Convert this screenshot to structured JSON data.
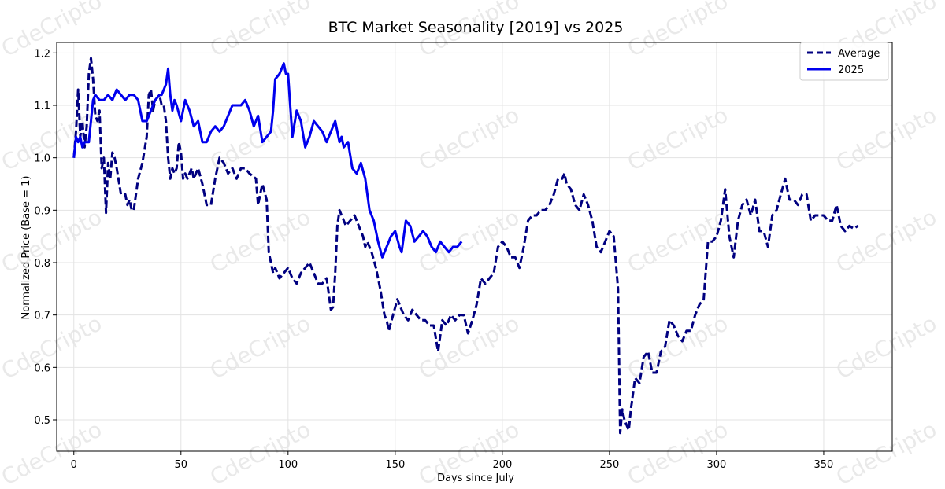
{
  "chart_data": {
    "type": "line",
    "title": "BTC Market Seasonality [2019] vs 2025",
    "xlabel": "Days since July",
    "ylabel": "Normalized Price (Base = 1)",
    "xlim": [
      -8,
      382
    ],
    "ylim": [
      0.44,
      1.22
    ],
    "xticks": [
      0,
      50,
      100,
      150,
      200,
      250,
      300,
      350
    ],
    "yticks": [
      0.5,
      0.6,
      0.7,
      0.8,
      0.9,
      1.0,
      1.1,
      1.2
    ],
    "ytick_labels": [
      "0.5",
      "0.6",
      "0.7",
      "0.8",
      "0.9",
      "1.0",
      "1.1",
      "1.2"
    ],
    "grid": true,
    "legend_position": "top-right",
    "watermark": "CdeCripto",
    "series": [
      {
        "name": "Average",
        "style": "dashed",
        "color": "#000080",
        "points": [
          [
            0,
            1.0
          ],
          [
            1,
            1.05
          ],
          [
            2,
            1.13
          ],
          [
            3,
            1.04
          ],
          [
            4,
            1.07
          ],
          [
            5,
            1.02
          ],
          [
            6,
            1.06
          ],
          [
            7,
            1.16
          ],
          [
            8,
            1.19
          ],
          [
            9,
            1.15
          ],
          [
            10,
            1.08
          ],
          [
            11,
            1.07
          ],
          [
            12,
            1.09
          ],
          [
            13,
            0.98
          ],
          [
            14,
            1.0
          ],
          [
            15,
            0.895
          ],
          [
            16,
            0.99
          ],
          [
            17,
            0.96
          ],
          [
            18,
            1.01
          ],
          [
            19,
            1.0
          ],
          [
            20,
            0.98
          ],
          [
            22,
            0.93
          ],
          [
            24,
            0.93
          ],
          [
            25,
            0.91
          ],
          [
            26,
            0.92
          ],
          [
            27,
            0.9
          ],
          [
            28,
            0.9
          ],
          [
            30,
            0.96
          ],
          [
            32,
            0.99
          ],
          [
            34,
            1.04
          ],
          [
            35,
            1.12
          ],
          [
            36,
            1.13
          ],
          [
            37,
            1.09
          ],
          [
            38,
            1.11
          ],
          [
            40,
            1.12
          ],
          [
            41,
            1.1
          ],
          [
            42,
            1.1
          ],
          [
            43,
            1.07
          ],
          [
            44,
            1.0
          ],
          [
            45,
            0.96
          ],
          [
            46,
            0.98
          ],
          [
            47,
            0.97
          ],
          [
            48,
            0.98
          ],
          [
            49,
            1.03
          ],
          [
            50,
            1.01
          ],
          [
            51,
            0.96
          ],
          [
            52,
            0.97
          ],
          [
            53,
            0.96
          ],
          [
            55,
            0.98
          ],
          [
            56,
            0.96
          ],
          [
            58,
            0.98
          ],
          [
            60,
            0.95
          ],
          [
            62,
            0.91
          ],
          [
            64,
            0.91
          ],
          [
            66,
            0.96
          ],
          [
            68,
            1.0
          ],
          [
            70,
            0.99
          ],
          [
            72,
            0.97
          ],
          [
            74,
            0.98
          ],
          [
            76,
            0.96
          ],
          [
            78,
            0.98
          ],
          [
            80,
            0.98
          ],
          [
            82,
            0.97
          ],
          [
            85,
            0.96
          ],
          [
            86,
            0.91
          ],
          [
            87,
            0.93
          ],
          [
            88,
            0.95
          ],
          [
            90,
            0.92
          ],
          [
            91,
            0.82
          ],
          [
            93,
            0.78
          ],
          [
            94,
            0.79
          ],
          [
            96,
            0.77
          ],
          [
            98,
            0.78
          ],
          [
            100,
            0.79
          ],
          [
            102,
            0.77
          ],
          [
            104,
            0.76
          ],
          [
            106,
            0.78
          ],
          [
            108,
            0.79
          ],
          [
            110,
            0.8
          ],
          [
            112,
            0.78
          ],
          [
            114,
            0.76
          ],
          [
            116,
            0.76
          ],
          [
            118,
            0.77
          ],
          [
            120,
            0.71
          ],
          [
            121,
            0.715
          ],
          [
            122,
            0.78
          ],
          [
            123,
            0.87
          ],
          [
            124,
            0.9
          ],
          [
            125,
            0.89
          ],
          [
            127,
            0.87
          ],
          [
            129,
            0.88
          ],
          [
            131,
            0.89
          ],
          [
            133,
            0.87
          ],
          [
            135,
            0.85
          ],
          [
            136,
            0.83
          ],
          [
            137,
            0.84
          ],
          [
            139,
            0.82
          ],
          [
            141,
            0.79
          ],
          [
            143,
            0.75
          ],
          [
            145,
            0.7
          ],
          [
            146,
            0.69
          ],
          [
            147,
            0.67
          ],
          [
            149,
            0.7
          ],
          [
            151,
            0.73
          ],
          [
            152,
            0.72
          ],
          [
            154,
            0.7
          ],
          [
            156,
            0.69
          ],
          [
            158,
            0.71
          ],
          [
            160,
            0.7
          ],
          [
            162,
            0.69
          ],
          [
            164,
            0.69
          ],
          [
            166,
            0.68
          ],
          [
            168,
            0.68
          ],
          [
            170,
            0.63
          ],
          [
            172,
            0.69
          ],
          [
            174,
            0.68
          ],
          [
            176,
            0.7
          ],
          [
            178,
            0.69
          ],
          [
            180,
            0.7
          ],
          [
            182,
            0.7
          ],
          [
            184,
            0.665
          ],
          [
            186,
            0.69
          ],
          [
            188,
            0.72
          ],
          [
            190,
            0.77
          ],
          [
            192,
            0.76
          ],
          [
            194,
            0.77
          ],
          [
            196,
            0.78
          ],
          [
            198,
            0.83
          ],
          [
            200,
            0.84
          ],
          [
            202,
            0.83
          ],
          [
            204,
            0.81
          ],
          [
            206,
            0.81
          ],
          [
            208,
            0.79
          ],
          [
            210,
            0.83
          ],
          [
            212,
            0.88
          ],
          [
            214,
            0.89
          ],
          [
            216,
            0.89
          ],
          [
            218,
            0.9
          ],
          [
            220,
            0.9
          ],
          [
            222,
            0.91
          ],
          [
            224,
            0.93
          ],
          [
            226,
            0.96
          ],
          [
            228,
            0.96
          ],
          [
            229,
            0.97
          ],
          [
            230,
            0.95
          ],
          [
            232,
            0.94
          ],
          [
            234,
            0.91
          ],
          [
            236,
            0.9
          ],
          [
            238,
            0.93
          ],
          [
            240,
            0.91
          ],
          [
            242,
            0.88
          ],
          [
            244,
            0.83
          ],
          [
            246,
            0.82
          ],
          [
            248,
            0.84
          ],
          [
            250,
            0.86
          ],
          [
            252,
            0.85
          ],
          [
            254,
            0.75
          ],
          [
            255,
            0.475
          ],
          [
            256,
            0.52
          ],
          [
            257,
            0.5
          ],
          [
            258,
            0.49
          ],
          [
            259,
            0.48
          ],
          [
            260,
            0.52
          ],
          [
            262,
            0.58
          ],
          [
            264,
            0.57
          ],
          [
            266,
            0.62
          ],
          [
            268,
            0.63
          ],
          [
            270,
            0.59
          ],
          [
            272,
            0.59
          ],
          [
            274,
            0.63
          ],
          [
            276,
            0.64
          ],
          [
            278,
            0.69
          ],
          [
            280,
            0.68
          ],
          [
            282,
            0.66
          ],
          [
            284,
            0.65
          ],
          [
            286,
            0.67
          ],
          [
            288,
            0.67
          ],
          [
            290,
            0.7
          ],
          [
            292,
            0.72
          ],
          [
            294,
            0.73
          ],
          [
            296,
            0.84
          ],
          [
            298,
            0.84
          ],
          [
            300,
            0.85
          ],
          [
            302,
            0.88
          ],
          [
            304,
            0.94
          ],
          [
            306,
            0.85
          ],
          [
            308,
            0.81
          ],
          [
            310,
            0.88
          ],
          [
            312,
            0.91
          ],
          [
            314,
            0.92
          ],
          [
            316,
            0.89
          ],
          [
            318,
            0.92
          ],
          [
            320,
            0.86
          ],
          [
            322,
            0.86
          ],
          [
            324,
            0.83
          ],
          [
            326,
            0.89
          ],
          [
            328,
            0.9
          ],
          [
            330,
            0.93
          ],
          [
            332,
            0.96
          ],
          [
            334,
            0.92
          ],
          [
            336,
            0.92
          ],
          [
            338,
            0.91
          ],
          [
            340,
            0.93
          ],
          [
            342,
            0.93
          ],
          [
            344,
            0.88
          ],
          [
            346,
            0.89
          ],
          [
            348,
            0.89
          ],
          [
            350,
            0.89
          ],
          [
            352,
            0.88
          ],
          [
            354,
            0.88
          ],
          [
            356,
            0.91
          ],
          [
            358,
            0.87
          ],
          [
            360,
            0.86
          ],
          [
            362,
            0.87
          ],
          [
            364,
            0.865
          ],
          [
            366,
            0.87
          ]
        ]
      },
      {
        "name": "2025",
        "style": "solid",
        "color": "#0000ee",
        "points": [
          [
            0,
            1.0
          ],
          [
            1,
            1.04
          ],
          [
            2,
            1.03
          ],
          [
            3,
            1.04
          ],
          [
            4,
            1.02
          ],
          [
            5,
            1.03
          ],
          [
            7,
            1.03
          ],
          [
            9,
            1.11
          ],
          [
            10,
            1.12
          ],
          [
            12,
            1.11
          ],
          [
            14,
            1.11
          ],
          [
            16,
            1.12
          ],
          [
            18,
            1.11
          ],
          [
            20,
            1.13
          ],
          [
            22,
            1.12
          ],
          [
            24,
            1.11
          ],
          [
            26,
            1.12
          ],
          [
            28,
            1.12
          ],
          [
            30,
            1.11
          ],
          [
            32,
            1.07
          ],
          [
            34,
            1.07
          ],
          [
            36,
            1.09
          ],
          [
            38,
            1.11
          ],
          [
            40,
            1.12
          ],
          [
            41,
            1.12
          ],
          [
            42,
            1.13
          ],
          [
            43,
            1.14
          ],
          [
            44,
            1.17
          ],
          [
            45,
            1.12
          ],
          [
            46,
            1.09
          ],
          [
            47,
            1.11
          ],
          [
            48,
            1.1
          ],
          [
            50,
            1.07
          ],
          [
            52,
            1.11
          ],
          [
            54,
            1.09
          ],
          [
            56,
            1.06
          ],
          [
            58,
            1.07
          ],
          [
            60,
            1.03
          ],
          [
            62,
            1.03
          ],
          [
            64,
            1.05
          ],
          [
            66,
            1.06
          ],
          [
            68,
            1.05
          ],
          [
            70,
            1.06
          ],
          [
            72,
            1.08
          ],
          [
            74,
            1.1
          ],
          [
            76,
            1.1
          ],
          [
            78,
            1.1
          ],
          [
            80,
            1.11
          ],
          [
            82,
            1.09
          ],
          [
            84,
            1.06
          ],
          [
            86,
            1.08
          ],
          [
            88,
            1.03
          ],
          [
            90,
            1.04
          ],
          [
            92,
            1.05
          ],
          [
            93,
            1.09
          ],
          [
            94,
            1.15
          ],
          [
            96,
            1.16
          ],
          [
            98,
            1.18
          ],
          [
            99,
            1.16
          ],
          [
            100,
            1.16
          ],
          [
            101,
            1.1
          ],
          [
            102,
            1.04
          ],
          [
            104,
            1.09
          ],
          [
            106,
            1.07
          ],
          [
            108,
            1.02
          ],
          [
            110,
            1.04
          ],
          [
            112,
            1.07
          ],
          [
            114,
            1.06
          ],
          [
            116,
            1.05
          ],
          [
            118,
            1.03
          ],
          [
            120,
            1.05
          ],
          [
            122,
            1.07
          ],
          [
            124,
            1.03
          ],
          [
            125,
            1.04
          ],
          [
            126,
            1.02
          ],
          [
            128,
            1.03
          ],
          [
            130,
            0.98
          ],
          [
            132,
            0.97
          ],
          [
            134,
            0.99
          ],
          [
            136,
            0.96
          ],
          [
            138,
            0.9
          ],
          [
            140,
            0.88
          ],
          [
            142,
            0.84
          ],
          [
            144,
            0.81
          ],
          [
            146,
            0.83
          ],
          [
            148,
            0.85
          ],
          [
            150,
            0.86
          ],
          [
            152,
            0.83
          ],
          [
            153,
            0.82
          ],
          [
            155,
            0.88
          ],
          [
            157,
            0.87
          ],
          [
            159,
            0.84
          ],
          [
            161,
            0.85
          ],
          [
            163,
            0.86
          ],
          [
            165,
            0.85
          ],
          [
            167,
            0.83
          ],
          [
            169,
            0.82
          ],
          [
            171,
            0.84
          ],
          [
            173,
            0.83
          ],
          [
            175,
            0.82
          ],
          [
            177,
            0.83
          ],
          [
            179,
            0.83
          ],
          [
            181,
            0.84
          ]
        ]
      }
    ]
  }
}
